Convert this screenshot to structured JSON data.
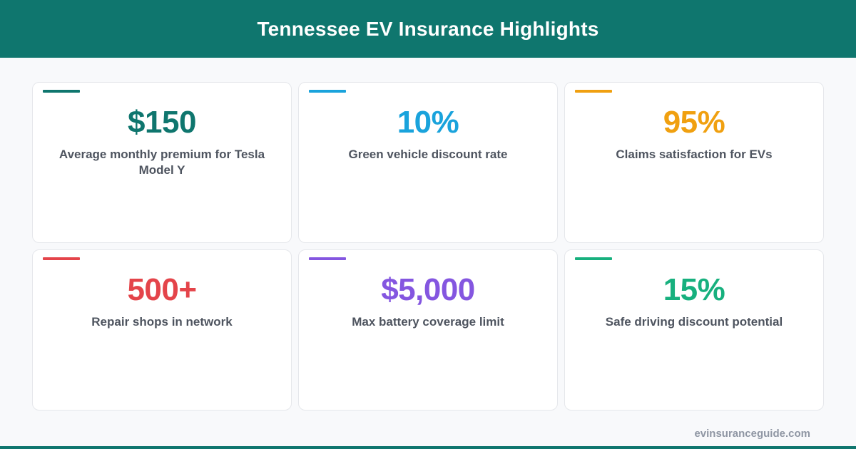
{
  "header": {
    "title": "Tennessee EV Insurance Highlights",
    "background": "#0f766e"
  },
  "cards": [
    {
      "value": "$150",
      "label": "Average monthly premium for Tesla Model Y",
      "color": "#0f766e"
    },
    {
      "value": "10%",
      "label": "Green vehicle discount rate",
      "color": "#1aa3dc"
    },
    {
      "value": "95%",
      "label": "Claims satisfaction for EVs",
      "color": "#f0a010"
    },
    {
      "value": "500+",
      "label": "Repair shops in network",
      "color": "#e4444a"
    },
    {
      "value": "$5,000",
      "label": "Max battery coverage limit",
      "color": "#8456e0"
    },
    {
      "value": "15%",
      "label": "Safe driving discount potential",
      "color": "#17b07e"
    }
  ],
  "footer": {
    "url": "evinsuranceguide.com"
  }
}
